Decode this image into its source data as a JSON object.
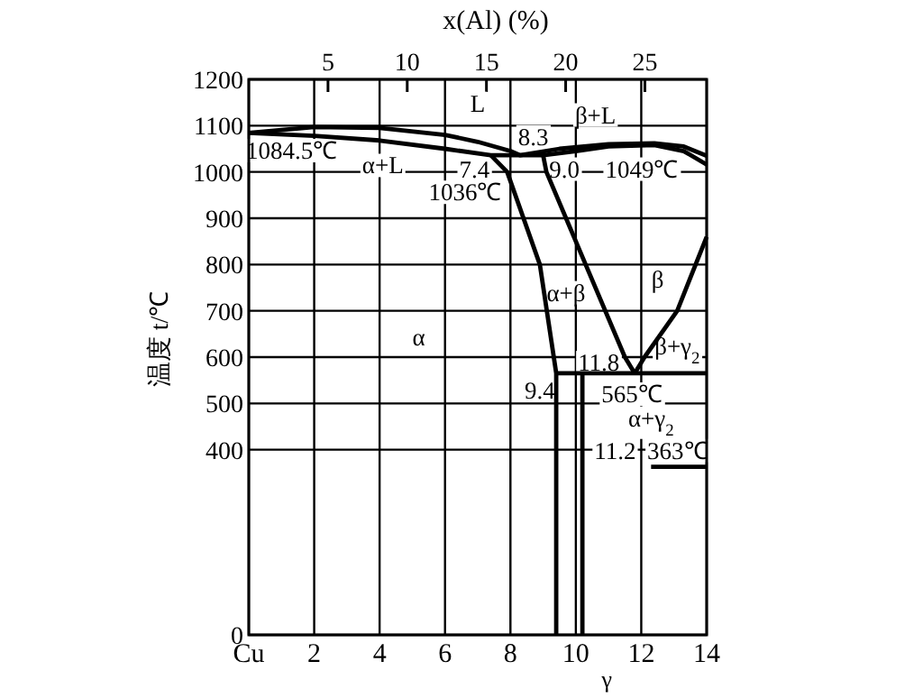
{
  "chart_data": {
    "type": "line",
    "x2label": "x(Al)  (%)",
    "ylabel": "温度 t/℃",
    "xlim": [
      0,
      14
    ],
    "xticks": [
      {
        "value": 0,
        "label": "Cu"
      },
      2,
      4,
      6,
      8,
      10,
      12,
      14
    ],
    "ylim": [
      0,
      1200
    ],
    "yticks": [
      0,
      400,
      500,
      600,
      700,
      800,
      900,
      1000,
      1100,
      1200
    ],
    "x2lim": [
      0,
      28.9
    ],
    "x2ticks": [
      5,
      10,
      15,
      20,
      25
    ],
    "grid": true,
    "marker": "none",
    "line_style": "solid",
    "series": [
      {
        "color": "#000000",
        "x": [
          0,
          2,
          4,
          6,
          7,
          8,
          8.3,
          9.5,
          11,
          12.4,
          13.3,
          14
        ],
        "values": [
          1084.5,
          1097,
          1095,
          1080,
          1065,
          1045,
          1036,
          1050,
          1060,
          1062,
          1055,
          1035
        ]
      },
      {
        "color": "#000000",
        "x": [
          0,
          2,
          4,
          6,
          7.4,
          9.0,
          10,
          11,
          12.4,
          13.3,
          14
        ],
        "values": [
          1084.5,
          1078,
          1068,
          1050,
          1036,
          1036,
          1045,
          1055,
          1058,
          1045,
          1016
        ]
      },
      {
        "color": "#000000",
        "x": [
          7.4,
          7.9,
          8.9,
          9.4,
          9.4
        ],
        "values": [
          1036,
          1000,
          800,
          565,
          0
        ]
      },
      {
        "color": "#000000",
        "x": [
          9.0,
          9.1,
          10.3,
          11.5,
          11.8
        ],
        "values": [
          1036,
          1000,
          800,
          600,
          565
        ]
      },
      {
        "color": "#000000",
        "x": [
          11.8,
          12.1,
          13.1,
          14
        ],
        "values": [
          565,
          600,
          700,
          860
        ]
      },
      {
        "color": "#000000",
        "x": [
          9.4,
          14
        ],
        "values": [
          565,
          565
        ]
      },
      {
        "color": "#000000",
        "x": [
          10.2,
          10.2
        ],
        "values": [
          565,
          0
        ]
      },
      {
        "color": "#000000",
        "x": [
          12.3,
          14
        ],
        "values": [
          363,
          363
        ]
      }
    ],
    "annotations": [
      "L",
      "β+L",
      "8.3",
      "1084.5℃",
      "α+L",
      "7.4",
      "9.0",
      "1049℃",
      "1036℃",
      "α+β",
      "β",
      "α",
      "β+γ$_{2}$",
      "11.8",
      "565℃",
      "9.4",
      "α+γ$_{2}$",
      "11.2",
      "363℃",
      "γ"
    ]
  }
}
